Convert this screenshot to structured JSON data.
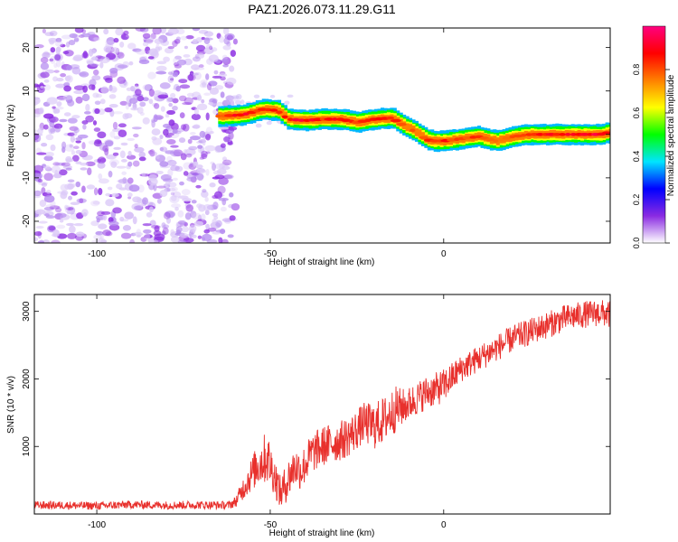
{
  "figure_title": "PAZ1.2026.073.11.29.G11",
  "chart_data": [
    {
      "type": "heatmap",
      "title": "PAZ1.2026.073.11.29.G11",
      "xlabel": "Height of straight line (km)",
      "ylabel": "Frequency (Hz)",
      "xlim": [
        -118,
        48
      ],
      "ylim": [
        -25,
        24.5
      ],
      "xticks": [
        -100,
        -50,
        0
      ],
      "yticks": [
        -20,
        -10,
        0,
        10,
        20
      ],
      "colorbar": {
        "label": "Normalized spectral amplitude",
        "range": [
          0,
          1
        ],
        "ticks": [
          "0.0",
          "0.2",
          "0.4",
          "0.6",
          "0.8"
        ],
        "colors": [
          "#ffffff",
          "#8a2be2",
          "#0000ff",
          "#00e5ff",
          "#00ff00",
          "#ffff00",
          "#ff8000",
          "#ff0000",
          "#ff0080"
        ]
      },
      "noise_region": {
        "x_from": -118,
        "x_to": -60,
        "level": "low (~0.1-0.2)"
      },
      "ridge": {
        "x": [
          -65,
          -58,
          -52,
          -48,
          -45,
          -40,
          -35,
          -30,
          -25,
          -20,
          -15,
          -12,
          -8,
          -5,
          -3,
          0,
          5,
          10,
          15,
          20,
          25,
          30,
          35,
          40,
          45,
          48
        ],
        "frequency": [
          4.2,
          4.5,
          5.8,
          5.5,
          3.5,
          3.2,
          3.5,
          3.5,
          2.8,
          3.5,
          3.8,
          2.2,
          0.5,
          -1.2,
          -1.5,
          -1.5,
          -1.0,
          -0.5,
          -1.5,
          -0.5,
          0.0,
          0.0,
          0.0,
          0.0,
          0.0,
          0.5
        ],
        "amplitude": [
          0.85,
          0.95,
          0.85,
          0.9,
          0.95,
          0.95,
          0.9,
          0.9,
          0.85,
          0.9,
          0.9,
          0.85,
          0.8,
          0.85,
          0.9,
          0.9,
          0.85,
          0.9,
          0.85,
          0.85,
          0.9,
          0.9,
          0.95,
          0.95,
          0.95,
          0.9
        ]
      }
    },
    {
      "type": "line",
      "title": "",
      "xlabel": "Height of straight line (km)",
      "ylabel": "SNR (10 * v/v)",
      "xlim": [
        -118,
        48
      ],
      "ylim": [
        0,
        3250
      ],
      "xticks": [
        -100,
        -50,
        0
      ],
      "yticks": [
        1000,
        2000,
        3000
      ],
      "series": [
        {
          "name": "SNR",
          "color": "#e8302c",
          "x": [
            -118,
            -110,
            -100,
            -90,
            -80,
            -70,
            -62,
            -60,
            -57,
            -54,
            -51,
            -49,
            -47,
            -45,
            -43,
            -41,
            -38,
            -35,
            -32,
            -29,
            -26,
            -23,
            -20,
            -17,
            -14,
            -11,
            -8,
            -5,
            -2,
            0,
            5,
            10,
            15,
            20,
            25,
            30,
            35,
            40,
            45,
            48
          ],
          "values": [
            130,
            130,
            120,
            140,
            130,
            135,
            130,
            180,
            450,
            700,
            850,
            600,
            300,
            500,
            700,
            650,
            900,
            1000,
            1050,
            1100,
            1200,
            1350,
            1300,
            1400,
            1550,
            1600,
            1700,
            1800,
            1850,
            1900,
            2150,
            2300,
            2450,
            2600,
            2700,
            2800,
            2900,
            2950,
            2980,
            2950
          ],
          "noise_amplitude": [
            60,
            60,
            60,
            60,
            60,
            60,
            60,
            80,
            200,
            300,
            400,
            300,
            250,
            300,
            300,
            300,
            300,
            300,
            300,
            300,
            300,
            300,
            350,
            350,
            350,
            250,
            250,
            250,
            250,
            250,
            200,
            200,
            200,
            200,
            200,
            200,
            200,
            200,
            200,
            200
          ]
        }
      ]
    }
  ]
}
